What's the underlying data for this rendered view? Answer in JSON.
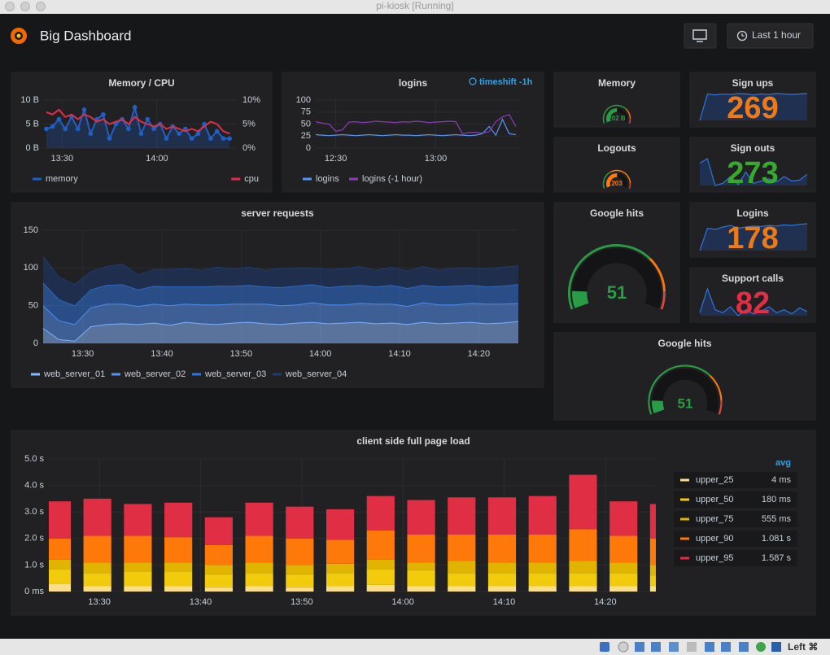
{
  "window": {
    "title": "pi-kiosk [Running]"
  },
  "header": {
    "title": "Big Dashboard",
    "time_range": "Last 1 hour"
  },
  "panels": {
    "memory_cpu": {
      "type": "line",
      "title": "Memory / CPU",
      "grid": true,
      "x": [
        805,
        807,
        809,
        811,
        813,
        815,
        817,
        819,
        821,
        823,
        825,
        827,
        829,
        831,
        833,
        835,
        837,
        839,
        841,
        843,
        845,
        847,
        849,
        851,
        853,
        855,
        857,
        859,
        861,
        863
      ],
      "xlim": [
        804,
        865
      ],
      "xticks": [
        {
          "value": 810,
          "label": "13:30"
        },
        {
          "value": 840,
          "label": "14:00"
        }
      ],
      "ylim": [
        0,
        10
      ],
      "yticks": [
        {
          "value": 0,
          "label": "0 B"
        },
        {
          "value": 5,
          "label": "5 B"
        },
        {
          "value": 10,
          "label": "10 B"
        }
      ],
      "y2lim": [
        0,
        10
      ],
      "y2ticks": [
        {
          "value": 0,
          "label": "0%"
        },
        {
          "value": 5,
          "label": "5%"
        },
        {
          "value": 10,
          "label": "10%"
        }
      ],
      "series": [
        {
          "name": "memory",
          "color": "#1f60c4",
          "values": [
            4,
            4.5,
            6,
            4,
            6.5,
            4,
            8,
            3,
            6,
            7,
            2,
            5,
            6,
            4,
            8.5,
            3,
            6,
            4,
            5,
            2,
            4.5,
            3,
            4,
            2,
            3,
            5,
            2,
            3.5,
            2,
            2
          ]
        },
        {
          "name": "cpu",
          "color": "#e02f44",
          "axis": "y2",
          "values": [
            7.5,
            7,
            8,
            6.5,
            7,
            6,
            7,
            6.5,
            5.5,
            6,
            5,
            5.5,
            6,
            5,
            6.5,
            5.5,
            5,
            4.5,
            5,
            4,
            4.5,
            4,
            3.5,
            4,
            3.5,
            4.5,
            5.5,
            5,
            3.5,
            3
          ]
        }
      ]
    },
    "logins": {
      "type": "line",
      "title": "logins",
      "annotation": "timeshift -1h",
      "grid": true,
      "x": [
        744,
        746,
        748,
        750,
        752,
        754,
        756,
        758,
        760,
        762,
        764,
        766,
        768,
        770,
        772,
        774,
        776,
        778,
        780,
        782,
        784,
        786,
        788,
        790,
        792,
        794,
        796,
        798,
        800,
        802,
        804
      ],
      "xlim": [
        744,
        805
      ],
      "xticks": [
        {
          "value": 750,
          "label": "12:30"
        },
        {
          "value": 780,
          "label": "13:00"
        }
      ],
      "ylim": [
        0,
        100
      ],
      "yticks": [
        0,
        25,
        50,
        75,
        100
      ],
      "series": [
        {
          "name": "logins",
          "color": "#5794f2",
          "values": [
            28,
            27,
            26,
            27,
            28,
            27,
            26,
            27,
            28,
            27,
            26,
            27,
            28,
            27,
            27,
            26,
            27,
            28,
            27,
            26,
            27,
            28,
            27,
            26,
            27,
            30,
            45,
            27,
            60,
            30,
            28
          ]
        },
        {
          "name": "logins (-1 hour)",
          "color": "#8f3bb8",
          "values": [
            55,
            52,
            50,
            35,
            38,
            54,
            55,
            53,
            54,
            56,
            55,
            54,
            53,
            55,
            54,
            56,
            55,
            53,
            54,
            55,
            56,
            55,
            30,
            32,
            33,
            31,
            34,
            55,
            65,
            70,
            45
          ]
        }
      ]
    },
    "memory_gauge": {
      "type": "gauge",
      "title": "Memory",
      "value": 202,
      "value_label": "202 B",
      "min": 0,
      "max": 400,
      "thresholds": [
        280,
        360
      ],
      "colors": [
        "#299c46",
        "#ff780a",
        "#d44a3a"
      ]
    },
    "logouts_gauge": {
      "type": "gauge",
      "title": "Logouts",
      "value": 203,
      "min": 0,
      "max": 400,
      "thresholds": [
        150,
        360
      ],
      "colors": [
        "#299c46",
        "#ff780a",
        "#d44a3a"
      ]
    },
    "sign_ups": {
      "type": "stat",
      "title": "Sign ups",
      "value": 269,
      "color": "#eb7b18",
      "sparkline": [
        20,
        80,
        78,
        80,
        79,
        81,
        80,
        78,
        80,
        79,
        81,
        80,
        79,
        80,
        81
      ]
    },
    "sign_outs": {
      "type": "stat",
      "title": "Sign outs",
      "value": 273,
      "color": "#37a92d",
      "sparkline": [
        60,
        70,
        10,
        15,
        30,
        12,
        40,
        15,
        20,
        25,
        18,
        30,
        20,
        22,
        35
      ]
    },
    "stat_logins": {
      "type": "stat",
      "title": "Logins",
      "value": 178,
      "color": "#eb7b18",
      "sparkline": [
        30,
        70,
        68,
        72,
        75,
        70,
        72,
        74,
        73,
        75,
        74,
        76,
        75,
        77,
        78
      ]
    },
    "support_calls": {
      "type": "stat",
      "title": "Support calls",
      "value": 82,
      "color": "#e02f44",
      "sparkline": [
        20,
        60,
        25,
        20,
        30,
        15,
        25,
        18,
        22,
        30,
        20,
        25,
        18,
        28,
        22
      ]
    },
    "google_hits": {
      "type": "gauge",
      "title": "Google hits",
      "value": 51,
      "min": 0,
      "max": 500,
      "thresholds": [
        350,
        450
      ],
      "colors": [
        "#299c46",
        "#ff780a",
        "#d44a3a"
      ]
    },
    "google_hits_2": {
      "type": "gauge",
      "title": "Google hits",
      "value": 51,
      "min": 0,
      "max": 500,
      "thresholds": [
        350,
        450
      ],
      "colors": [
        "#299c46",
        "#ff780a",
        "#d44a3a"
      ]
    },
    "server_requests": {
      "type": "stacked_area",
      "title": "server requests",
      "grid": true,
      "x": [
        805,
        807,
        809,
        811,
        813,
        815,
        817,
        819,
        821,
        823,
        825,
        827,
        829,
        831,
        833,
        835,
        837,
        839,
        841,
        843,
        845,
        847,
        849,
        851,
        853,
        855,
        857,
        859,
        861,
        863,
        865
      ],
      "xlim": [
        805,
        865
      ],
      "xticks": [
        {
          "value": 810,
          "label": "13:30"
        },
        {
          "value": 820,
          "label": "13:40"
        },
        {
          "value": 830,
          "label": "13:50"
        },
        {
          "value": 840,
          "label": "14:00"
        },
        {
          "value": 850,
          "label": "14:10"
        },
        {
          "value": 860,
          "label": "14:20"
        }
      ],
      "ylim": [
        0,
        150
      ],
      "yticks": [
        0,
        50,
        100,
        150
      ],
      "series": [
        {
          "name": "web_server_01",
          "color": "#8ab8ff",
          "values": [
            20,
            5,
            3,
            22,
            25,
            26,
            25,
            27,
            24,
            28,
            26,
            25,
            27,
            28,
            26,
            25,
            27,
            28,
            26,
            27,
            28,
            26,
            27,
            25,
            28,
            26,
            27,
            28,
            26,
            27,
            29
          ]
        },
        {
          "name": "web_server_02",
          "color": "#5794f2",
          "values": [
            30,
            25,
            22,
            25,
            27,
            26,
            24,
            25,
            26,
            24,
            25,
            26,
            25,
            24,
            26,
            25,
            24,
            26,
            25,
            24,
            25,
            26,
            25,
            24,
            26,
            25,
            24,
            25,
            26,
            25,
            24
          ]
        },
        {
          "name": "web_server_03",
          "color": "#3274d9",
          "values": [
            30,
            28,
            25,
            24,
            25,
            26,
            22,
            24,
            25,
            23,
            24,
            25,
            24,
            25,
            23,
            24,
            25,
            24,
            23,
            25,
            24,
            23,
            25,
            24,
            23,
            24,
            25,
            24,
            23,
            24,
            25
          ]
        },
        {
          "name": "web_server_04",
          "color": "#1f3a70",
          "values": [
            35,
            30,
            28,
            24,
            25,
            27,
            20,
            22,
            23,
            24,
            22,
            25,
            23,
            24,
            22,
            25,
            24,
            22,
            24,
            23,
            25,
            22,
            24,
            23,
            25,
            22,
            24,
            23,
            24,
            25,
            25
          ]
        }
      ]
    },
    "page_load": {
      "type": "stacked_bar",
      "title": "client side full page load",
      "grid": true,
      "legend_column": "avg",
      "x": [
        805.8,
        809.8,
        813.8,
        817.8,
        821.8,
        825.8,
        829.8,
        833.8,
        837.8,
        841.8,
        845.8,
        849.8,
        853.8,
        857.8,
        861.8,
        865.8
      ],
      "xlim": [
        805,
        865
      ],
      "xticks": [
        {
          "value": 810,
          "label": "13:30"
        },
        {
          "value": 820,
          "label": "13:40"
        },
        {
          "value": 830,
          "label": "13:50"
        },
        {
          "value": 840,
          "label": "14:00"
        },
        {
          "value": 850,
          "label": "14:10"
        },
        {
          "value": 860,
          "label": "14:20"
        }
      ],
      "ylim": [
        0,
        5
      ],
      "yticks": [
        {
          "value": 0,
          "label": "0 ms"
        },
        {
          "value": 1,
          "label": "1.0 s"
        },
        {
          "value": 2,
          "label": "2.0 s"
        },
        {
          "value": 3,
          "label": "3.0 s"
        },
        {
          "value": 4,
          "label": "4.0 s"
        },
        {
          "value": 5,
          "label": "5.0 s"
        }
      ],
      "series": [
        {
          "name": "upper_25",
          "color": "#fade8a",
          "avg": 0.004,
          "avg_label": "4 ms",
          "values": [
            0.3,
            0.2,
            0.2,
            0.2,
            0.15,
            0.2,
            0.15,
            0.2,
            0.25,
            0.2,
            0.2,
            0.2,
            0.2,
            0.2,
            0.2,
            0.2
          ]
        },
        {
          "name": "upper_50",
          "color": "#f2cc0c",
          "avg": 0.18,
          "avg_label": "180 ms",
          "values": [
            0.55,
            0.5,
            0.55,
            0.55,
            0.5,
            0.5,
            0.5,
            0.5,
            0.6,
            0.6,
            0.5,
            0.5,
            0.5,
            0.5,
            0.5,
            0.4
          ]
        },
        {
          "name": "upper_75",
          "color": "#e0b400",
          "avg": 0.555,
          "avg_label": "555 ms",
          "values": [
            0.35,
            0.4,
            0.35,
            0.35,
            0.35,
            0.4,
            0.35,
            0.35,
            0.35,
            0.3,
            0.45,
            0.4,
            0.4,
            0.45,
            0.4,
            0.4
          ]
        },
        {
          "name": "upper_90",
          "color": "#ff780a",
          "avg": 1.081,
          "avg_label": "1.081 s",
          "values": [
            0.8,
            1.0,
            1.0,
            0.95,
            0.75,
            1.0,
            1.0,
            0.9,
            1.1,
            1.05,
            1.0,
            1.05,
            1.05,
            1.2,
            1.0,
            1.0
          ]
        },
        {
          "name": "upper_95",
          "color": "#e02f44",
          "avg": 1.587,
          "avg_label": "1.587 s",
          "values": [
            1.4,
            1.4,
            1.2,
            1.3,
            1.05,
            1.25,
            1.2,
            1.15,
            1.3,
            1.3,
            1.4,
            1.4,
            1.45,
            2.05,
            1.3,
            1.3
          ]
        }
      ]
    }
  },
  "taskbar": {
    "label": "Left ⌘"
  }
}
